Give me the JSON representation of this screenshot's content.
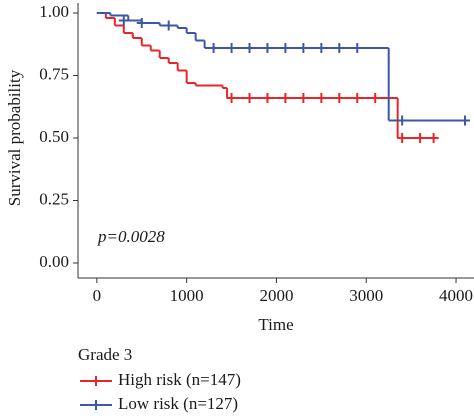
{
  "chart_data": {
    "type": "step",
    "x_label": "Time",
    "y_label": "Survival probability",
    "annotation": "p=0.0028",
    "legend_title": "Grade 3",
    "xlim": [
      -210,
      4200
    ],
    "xticks": [
      0,
      1000,
      2000,
      3000,
      4000
    ],
    "ylim": [
      -0.06,
      1.04
    ],
    "yticks": [
      {
        "value": 0,
        "label": "0.00"
      },
      {
        "value": 0.25,
        "label": "0.25"
      },
      {
        "value": 0.5,
        "label": "0.50"
      },
      {
        "value": 0.75,
        "label": "0.75"
      },
      {
        "value": 1,
        "label": "1.00"
      }
    ],
    "series": [
      {
        "name": "High risk (n=147)",
        "color": "#e8262a",
        "x": [
          0,
          100,
          200,
          300,
          400,
          500,
          600,
          700,
          800,
          900,
          1000,
          1100,
          1400,
          1450,
          3350,
          3800
        ],
        "values": [
          1,
          0.98,
          0.95,
          0.92,
          0.9,
          0.87,
          0.85,
          0.82,
          0.8,
          0.77,
          0.72,
          0.71,
          0.7,
          0.66,
          0.5,
          0.5
        ],
        "censored_x": [
          1500,
          1700,
          1900,
          2100,
          2300,
          2500,
          2700,
          2900,
          3100,
          3400,
          3600,
          3750
        ],
        "censored_y": [
          0.66,
          0.66,
          0.66,
          0.66,
          0.66,
          0.66,
          0.66,
          0.66,
          0.66,
          0.5,
          0.5,
          0.5
        ]
      },
      {
        "name": "Low risk (n=127)",
        "color": "#3b57a5",
        "x": [
          0,
          150,
          350,
          500,
          700,
          900,
          1000,
          1100,
          1200,
          3250,
          4150
        ],
        "values": [
          1,
          0.99,
          0.97,
          0.96,
          0.95,
          0.94,
          0.92,
          0.89,
          0.86,
          0.57,
          0.57
        ],
        "censored_x": [
          300,
          500,
          800,
          1300,
          1500,
          1700,
          1900,
          2100,
          2300,
          2500,
          2700,
          2900,
          3400,
          4100
        ],
        "censored_y": [
          0.97,
          0.96,
          0.95,
          0.86,
          0.86,
          0.86,
          0.86,
          0.86,
          0.86,
          0.86,
          0.86,
          0.86,
          0.57,
          0.57
        ]
      }
    ]
  }
}
